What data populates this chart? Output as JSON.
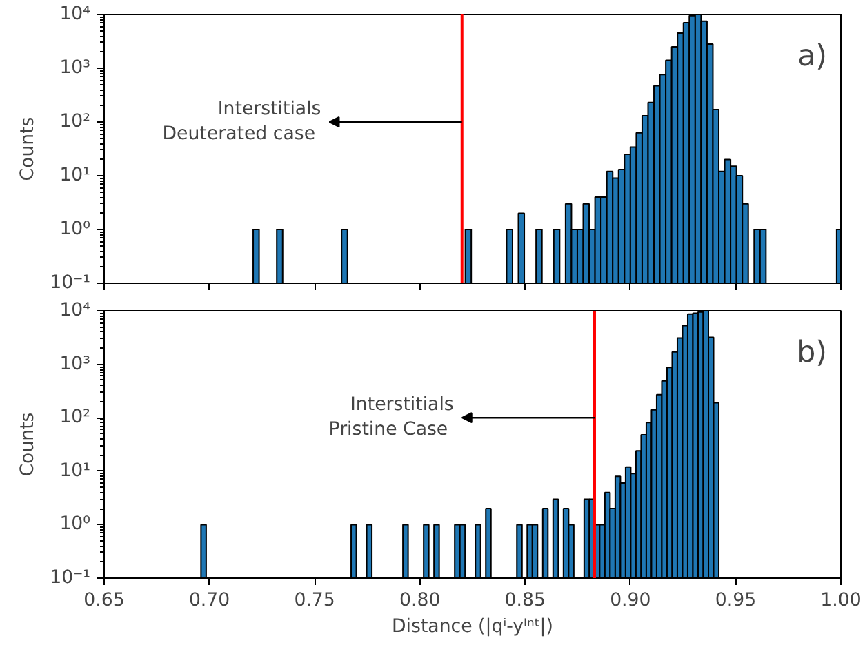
{
  "chart_data": [
    {
      "type": "histogram",
      "ylabel": "Counts",
      "log": "y",
      "color": "#1f77b4",
      "xlim": [
        0.65,
        1.0
      ],
      "ylim": [
        0.1,
        10000
      ],
      "tick_labels": "y",
      "xticks": [
        {
          "value": 0.65,
          "label": null
        },
        {
          "value": 0.7,
          "label": null
        },
        {
          "value": 0.75,
          "label": null
        },
        {
          "value": 0.8,
          "label": null
        },
        {
          "value": 0.85,
          "label": null
        },
        {
          "value": 0.9,
          "label": null
        },
        {
          "value": 0.95,
          "label": null
        },
        {
          "value": 1.0,
          "label": null
        }
      ],
      "yticks": [
        {
          "value": 0.1,
          "label": "10⁻¹"
        },
        {
          "value": 1,
          "label": "10⁰"
        },
        {
          "value": 10,
          "label": "10¹"
        },
        {
          "value": 100,
          "label": "10²"
        },
        {
          "value": 1000,
          "label": "10³"
        },
        {
          "value": 10000,
          "label": "10⁴"
        }
      ],
      "bins": [
        0.7208,
        0.7236,
        0.732,
        0.7348,
        0.7628,
        0.7656,
        0.8216,
        0.8244,
        0.8412,
        0.844,
        0.8468,
        0.8496,
        0.8552,
        0.858,
        0.8636,
        0.8664,
        0.8692,
        0.872,
        0.8748,
        0.8776,
        0.8804,
        0.8832,
        0.886,
        0.8888,
        0.8916,
        0.8944,
        0.8972,
        0.9,
        0.9028,
        0.9056,
        0.9084,
        0.9112,
        0.914,
        0.9168,
        0.9196,
        0.9224,
        0.9252,
        0.928,
        0.9308,
        0.9336,
        0.9364,
        0.9392,
        0.942,
        0.9448,
        0.9476,
        0.9504,
        0.9532,
        0.956,
        0.9588,
        0.9616,
        0.9644,
        0.998,
        1.0
      ],
      "values": [
        1,
        null,
        1,
        null,
        1,
        null,
        1,
        null,
        1,
        null,
        2,
        null,
        1,
        null,
        1,
        null,
        3,
        1,
        1,
        3,
        1,
        4,
        4,
        12,
        9,
        13,
        25,
        34,
        63,
        130,
        230,
        470,
        760,
        1400,
        2500,
        4500,
        7000,
        9500,
        10000,
        7500,
        2800,
        170,
        12,
        20,
        15,
        10,
        3,
        null,
        1,
        1,
        null,
        1
      ],
      "ref_lines": [
        {
          "axis": "x",
          "value": 0.82,
          "color": "#ff0000",
          "label": "Interstitials\n Deuterated case"
        }
      ],
      "annotations": [
        "a)"
      ]
    },
    {
      "type": "histogram",
      "ylabel": "Counts",
      "xlabel": "Distance (|qⁱ-yᴵⁿᵗ|)",
      "log": "y",
      "color": "#1f77b4",
      "xlim": [
        0.65,
        1.0
      ],
      "ylim": [
        0.1,
        10000
      ],
      "xticks": [
        0.65,
        {
          "value": 0.7,
          "label": "0.70"
        },
        0.75,
        {
          "value": 0.8,
          "label": "0.80"
        },
        0.85,
        {
          "value": 0.9,
          "label": "0.90"
        },
        0.95,
        {
          "value": 1.0,
          "label": "1.00"
        }
      ],
      "yticks": [
        {
          "value": 0.1,
          "label": "10⁻¹"
        },
        {
          "value": 1,
          "label": "10⁰"
        },
        {
          "value": 10,
          "label": "10¹"
        },
        {
          "value": 100,
          "label": "10²"
        },
        {
          "value": 1000,
          "label": "10³"
        },
        {
          "value": 10000,
          "label": "10⁴"
        }
      ],
      "bins": [
        0.696,
        0.69846,
        0.76734,
        0.7698,
        0.77472,
        0.77718,
        0.79194,
        0.7944,
        0.80178,
        0.80424,
        0.8067,
        0.80916,
        0.81654,
        0.819,
        0.82146,
        0.82638,
        0.82884,
        0.8313,
        0.83376,
        0.84606,
        0.84852,
        0.85098,
        0.85344,
        0.8559,
        0.85836,
        0.86082,
        0.86328,
        0.86574,
        0.8682,
        0.87066,
        0.87312,
        0.87804,
        0.8805,
        0.88296,
        0.88542,
        0.88788,
        0.89034,
        0.8928,
        0.89526,
        0.89772,
        0.90018,
        0.90264,
        0.9051,
        0.90756,
        0.91002,
        0.91248,
        0.91494,
        0.9174,
        0.91986,
        0.92232,
        0.92478,
        0.92724,
        0.9297,
        0.93216,
        0.93462,
        0.93708,
        0.93954,
        0.942
      ],
      "values": [
        1,
        null,
        1,
        null,
        1,
        null,
        1,
        null,
        1,
        null,
        1,
        null,
        1,
        1,
        null,
        1,
        null,
        2,
        null,
        1,
        null,
        1,
        1,
        null,
        2,
        null,
        3,
        null,
        2,
        1,
        null,
        3,
        3,
        1,
        1,
        4,
        2,
        8,
        6,
        12,
        9,
        24,
        48,
        81,
        140,
        270,
        490,
        870,
        1700,
        3100,
        5300,
        8700,
        9000,
        9500,
        10000,
        3200,
        190
      ],
      "ref_lines": [
        {
          "axis": "x",
          "value": 0.883,
          "color": "#ff0000",
          "label": "Interstitials\n Pristine Case"
        }
      ],
      "annotations": [
        "b)"
      ]
    }
  ]
}
